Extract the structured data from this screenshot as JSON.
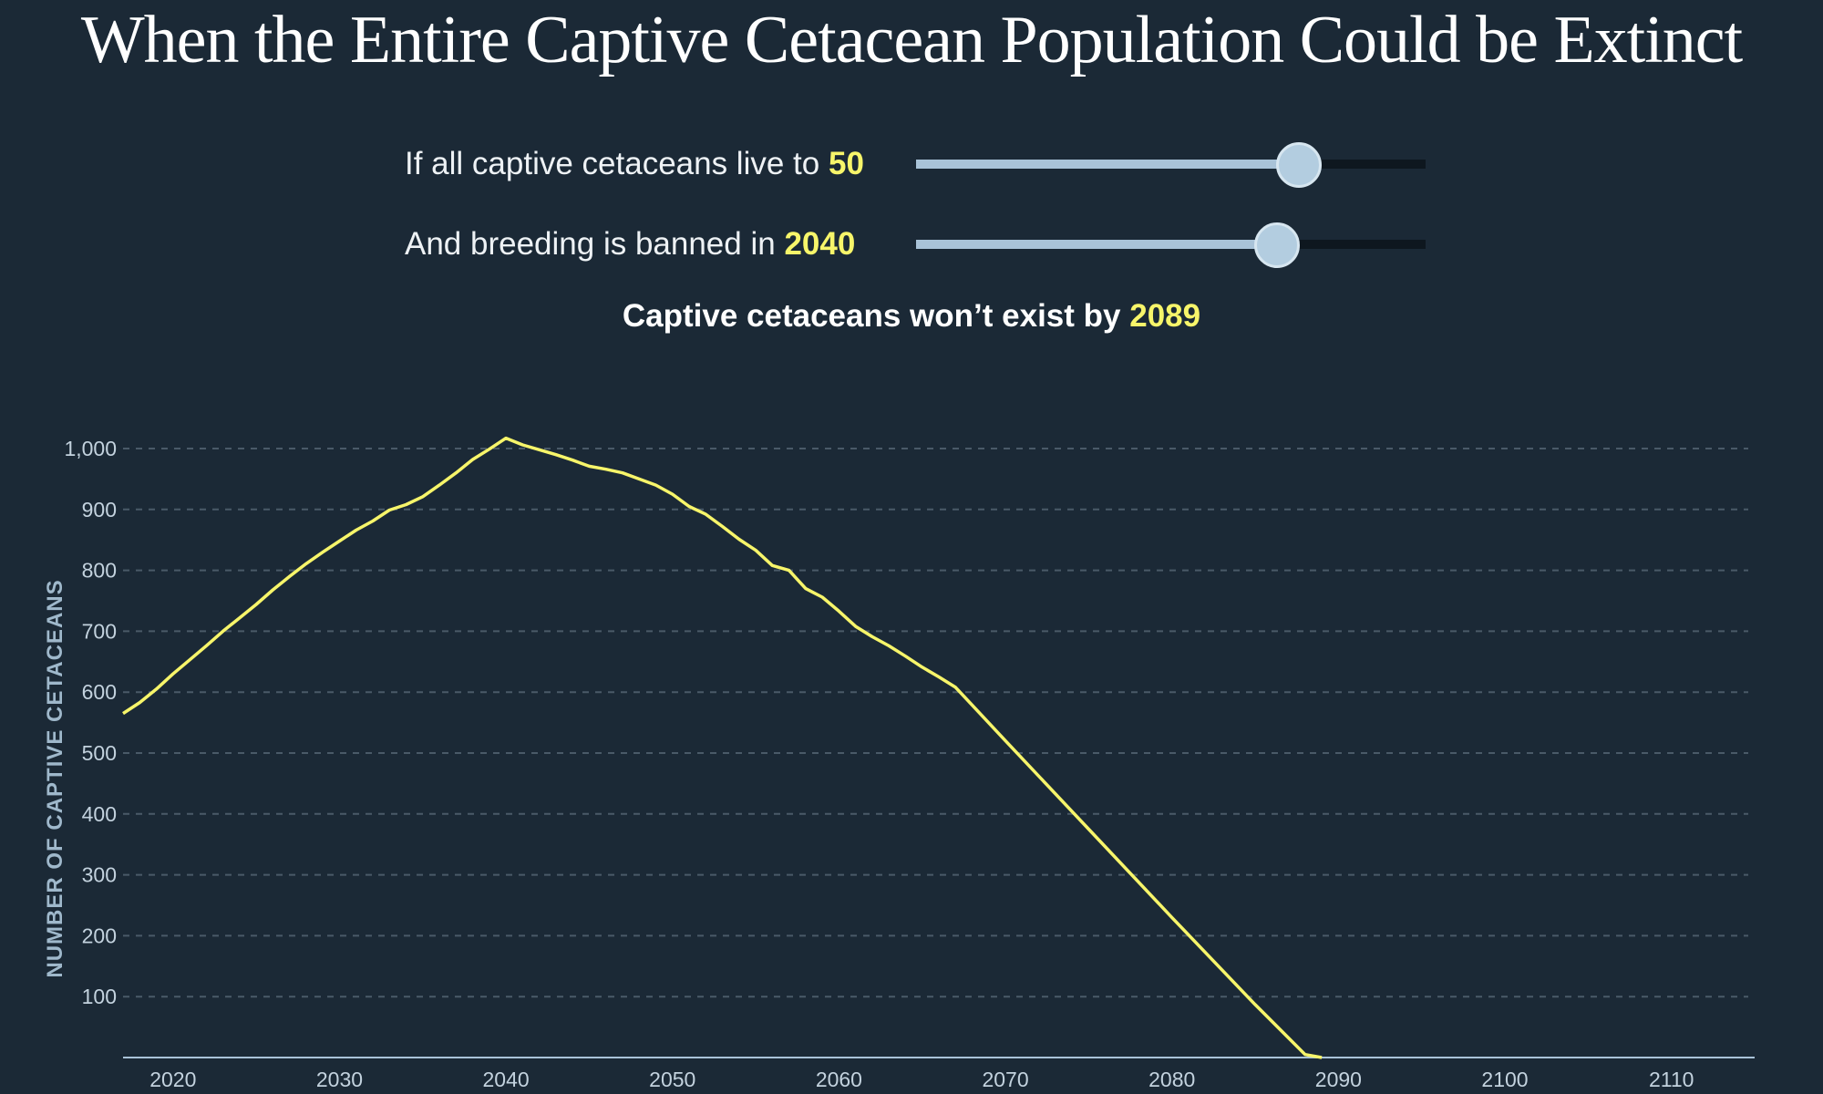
{
  "title": "When the Entire Captive Cetacean Population Could be Extinct",
  "controls": {
    "lifespan": {
      "label": "If all captive cetaceans live to",
      "value": "50",
      "level": 0.75
    },
    "ban": {
      "label": "And breeding is banned in",
      "value": "2040",
      "level": 0.707
    }
  },
  "result": {
    "label": "Captive cetaceans won’t exist by",
    "value": "2089"
  },
  "colors": {
    "background": "#1b2936",
    "line": "#f7f56a",
    "highlight": "#f7f56a",
    "grid": "#4a5a68",
    "axis": "#a9c3d8"
  },
  "chart_data": {
    "type": "line",
    "ylabel": "NUMBER OF CAPTIVE CETACEANS",
    "xlim": [
      2017,
      2115
    ],
    "ylim": [
      0,
      1000
    ],
    "grid": true,
    "x_ticks": [
      2020,
      2030,
      2040,
      2050,
      2060,
      2070,
      2080,
      2090,
      2100,
      2110
    ],
    "y_ticks": [
      {
        "value": 100,
        "label": "100"
      },
      {
        "value": 200,
        "label": "200"
      },
      {
        "value": 300,
        "label": "300"
      },
      {
        "value": 400,
        "label": "400"
      },
      {
        "value": 500,
        "label": "500"
      },
      {
        "value": 600,
        "label": "600"
      },
      {
        "value": 700,
        "label": "700"
      },
      {
        "value": 800,
        "label": "800"
      },
      {
        "value": 900,
        "label": "900"
      },
      {
        "value": 1000,
        "label": "1,000"
      }
    ],
    "series": [
      {
        "x": [
          2017,
          2018,
          2019,
          2020,
          2021,
          2022,
          2023,
          2024,
          2025,
          2026,
          2027,
          2028,
          2029,
          2030,
          2031,
          2032,
          2033,
          2034,
          2035,
          2036,
          2037,
          2038,
          2039,
          2040,
          2041,
          2042,
          2043,
          2044,
          2045,
          2046,
          2047,
          2048,
          2049,
          2050,
          2051,
          2052,
          2053,
          2054,
          2055,
          2056,
          2057,
          2058,
          2059,
          2060,
          2061,
          2062,
          2063,
          2064,
          2065,
          2066,
          2067,
          2070,
          2075,
          2080,
          2085,
          2088,
          2089
        ],
        "y": [
          565,
          583,
          605,
          630,
          653,
          676,
          700,
          722,
          744,
          768,
          790,
          811,
          830,
          848,
          866,
          881,
          899,
          908,
          921,
          940,
          960,
          982,
          999,
          1017,
          1006,
          998,
          990,
          981,
          971,
          966,
          960,
          950,
          940,
          925,
          905,
          892,
          872,
          851,
          833,
          808,
          800,
          770,
          756,
          733,
          708,
          691,
          676,
          659,
          641,
          625,
          608,
          520,
          375,
          230,
          87,
          5,
          0
        ]
      }
    ]
  }
}
